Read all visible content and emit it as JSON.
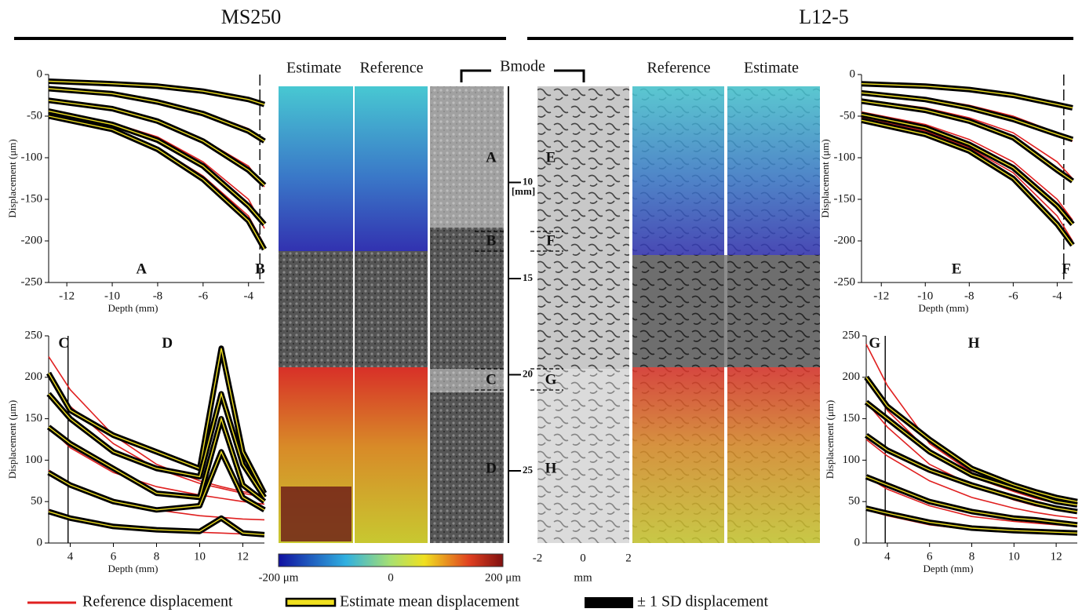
{
  "headers": {
    "left": "MS250",
    "right": "L12-5"
  },
  "image_labels": {
    "ms250_estimate": "Estimate",
    "ms250_reference": "Reference",
    "bmode": "Bmode",
    "l125_reference": "Reference",
    "l125_estimate": "Estimate"
  },
  "region_labels": [
    "A",
    "B",
    "C",
    "D",
    "E",
    "F",
    "G",
    "H"
  ],
  "depth_ticks": [
    10,
    15,
    20,
    25
  ],
  "depth_unit": "[mm]",
  "colorbar": {
    "labels": [
      "-200 μm",
      "0",
      "200 μm"
    ]
  },
  "lateral_axis": {
    "ticks": [
      -2,
      0,
      2
    ],
    "unit": "mm"
  },
  "legend": [
    "Reference displacement",
    "Estimate mean displacement",
    "± 1 SD displacement"
  ],
  "chart_data": [
    {
      "type": "line",
      "xlabel": "Depth (mm)",
      "ylabel": "Displacement (μm)",
      "xlim": [
        -12.8,
        -3.3
      ],
      "ylim": [
        -250,
        0
      ],
      "xticks": [
        -12,
        -10,
        -8,
        -6,
        -4
      ],
      "yticks": [
        -250,
        -200,
        -150,
        -100,
        -50,
        0
      ],
      "vline": -3.5,
      "annotations": [
        "A",
        "B"
      ],
      "x": [
        -12.8,
        -10,
        -8,
        -6,
        -4,
        -3.3
      ],
      "series": [
        {
          "color": "#e02020",
          "values": [
            -9,
            -12,
            -15,
            -20,
            -28,
            -35
          ]
        },
        {
          "color": "#e02020",
          "values": [
            -18,
            -24,
            -32,
            -45,
            -65,
            -80
          ]
        },
        {
          "color": "#e02020",
          "values": [
            -32,
            -42,
            -55,
            -78,
            -110,
            -135
          ]
        },
        {
          "color": "#e02020",
          "values": [
            -43,
            -58,
            -75,
            -105,
            -150,
            -185
          ]
        },
        {
          "color": "#e02020",
          "values": [
            -52,
            -68,
            -88,
            -122,
            -170,
            -205
          ]
        },
        {
          "color": "#f0e020",
          "values": [
            -8,
            -11,
            -14,
            -20,
            -30,
            -36
          ]
        },
        {
          "color": "#f0e020",
          "values": [
            -17,
            -23,
            -33,
            -47,
            -68,
            -80
          ]
        },
        {
          "color": "#f0e020",
          "values": [
            -31,
            -41,
            -56,
            -80,
            -115,
            -133
          ]
        },
        {
          "color": "#f0e020",
          "values": [
            -44,
            -60,
            -79,
            -110,
            -158,
            -180
          ]
        },
        {
          "color": "#f0e020",
          "values": [
            -50,
            -66,
            -90,
            -126,
            -176,
            -210
          ]
        }
      ]
    },
    {
      "type": "line",
      "xlabel": "Depth (mm)",
      "ylabel": "Displacement (μm)",
      "xlim": [
        3,
        13
      ],
      "ylim": [
        0,
        250
      ],
      "xticks": [
        4,
        6,
        8,
        10,
        12
      ],
      "yticks": [
        0,
        50,
        100,
        150,
        200,
        250
      ],
      "vline": 3.9,
      "annotations": [
        "C",
        "D"
      ],
      "x": [
        3,
        4,
        6,
        8,
        10,
        11,
        12,
        13
      ],
      "series": [
        {
          "color": "#e02020",
          "values": [
            225,
            185,
            130,
            95,
            75,
            68,
            62,
            58
          ]
        },
        {
          "color": "#e02020",
          "values": [
            200,
            165,
            120,
            90,
            72,
            66,
            60,
            55
          ]
        },
        {
          "color": "#e02020",
          "values": [
            140,
            115,
            85,
            68,
            58,
            54,
            50,
            47
          ]
        },
        {
          "color": "#e02020",
          "values": [
            88,
            72,
            52,
            40,
            33,
            31,
            29,
            28
          ]
        },
        {
          "color": "#e02020",
          "values": [
            40,
            32,
            22,
            16,
            13,
            12,
            11,
            10
          ]
        },
        {
          "color": "#f0e020",
          "values": [
            205,
            160,
            130,
            110,
            90,
            235,
            110,
            60
          ]
        },
        {
          "color": "#f0e020",
          "values": [
            180,
            150,
            110,
            90,
            80,
            180,
            95,
            55
          ]
        },
        {
          "color": "#f0e020",
          "values": [
            140,
            120,
            90,
            60,
            55,
            150,
            70,
            50
          ]
        },
        {
          "color": "#f0e020",
          "values": [
            85,
            70,
            50,
            40,
            45,
            110,
            55,
            40
          ]
        },
        {
          "color": "#f0e020",
          "values": [
            38,
            30,
            20,
            16,
            14,
            30,
            12,
            10
          ]
        }
      ]
    },
    {
      "type": "line",
      "xlabel": "Depth (mm)",
      "ylabel": "Displacement (μm)",
      "xlim": [
        -12.9,
        -3.3
      ],
      "ylim": [
        -250,
        0
      ],
      "xticks": [
        -12,
        -10,
        -8,
        -6,
        -4
      ],
      "yticks": [
        -250,
        -200,
        -150,
        -100,
        -50,
        0
      ],
      "vline": -3.7,
      "annotations": [
        "E",
        "F"
      ],
      "x": [
        -12.9,
        -10,
        -8,
        -6,
        -4,
        -3.3
      ],
      "series": [
        {
          "color": "#e02020",
          "values": [
            -10,
            -13,
            -17,
            -24,
            -35,
            -40
          ]
        },
        {
          "color": "#e02020",
          "values": [
            -20,
            -28,
            -37,
            -50,
            -70,
            -80
          ]
        },
        {
          "color": "#e02020",
          "values": [
            -30,
            -40,
            -52,
            -70,
            -105,
            -125
          ]
        },
        {
          "color": "#e02020",
          "values": [
            -45,
            -60,
            -78,
            -105,
            -150,
            -175
          ]
        },
        {
          "color": "#e02020",
          "values": [
            -52,
            -68,
            -88,
            -118,
            -170,
            -200
          ]
        },
        {
          "color": "#f0e020",
          "values": [
            -11,
            -14,
            -18,
            -25,
            -36,
            -40
          ]
        },
        {
          "color": "#f0e020",
          "values": [
            -22,
            -30,
            -40,
            -54,
            -72,
            -78
          ]
        },
        {
          "color": "#f0e020",
          "values": [
            -32,
            -43,
            -56,
            -76,
            -115,
            -128
          ]
        },
        {
          "color": "#f0e020",
          "values": [
            -48,
            -64,
            -84,
            -112,
            -158,
            -180
          ]
        },
        {
          "color": "#f0e020",
          "values": [
            -55,
            -72,
            -92,
            -125,
            -180,
            -205
          ]
        }
      ]
    },
    {
      "type": "line",
      "xlabel": "Depth (mm)",
      "ylabel": "Displacement (μm)",
      "xlim": [
        3,
        13
      ],
      "ylim": [
        0,
        250
      ],
      "xticks": [
        4,
        6,
        8,
        10,
        12
      ],
      "yticks": [
        0,
        50,
        100,
        150,
        200,
        250
      ],
      "vline": 3.9,
      "annotations": [
        "G",
        "H"
      ],
      "x": [
        3,
        4,
        6,
        8,
        10,
        11,
        12,
        13
      ],
      "series": [
        {
          "color": "#e02020",
          "values": [
            240,
            190,
            120,
            85,
            65,
            55,
            50,
            48
          ]
        },
        {
          "color": "#e02020",
          "values": [
            200,
            160,
            110,
            80,
            62,
            54,
            48,
            45
          ]
        },
        {
          "color": "#e02020",
          "values": [
            170,
            140,
            95,
            70,
            52,
            45,
            40,
            38
          ]
        },
        {
          "color": "#e02020",
          "values": [
            125,
            105,
            75,
            55,
            42,
            37,
            33,
            30
          ]
        },
        {
          "color": "#e02020",
          "values": [
            80,
            65,
            45,
            32,
            26,
            24,
            22,
            20
          ]
        },
        {
          "color": "#e02020",
          "values": [
            40,
            33,
            22,
            16,
            13,
            12,
            11,
            10
          ]
        },
        {
          "color": "#f0e020",
          "values": [
            200,
            165,
            125,
            90,
            70,
            62,
            55,
            50
          ]
        },
        {
          "color": "#f0e020",
          "values": [
            170,
            150,
            110,
            82,
            66,
            58,
            50,
            46
          ]
        },
        {
          "color": "#f0e020",
          "values": [
            130,
            112,
            88,
            70,
            55,
            48,
            42,
            38
          ]
        },
        {
          "color": "#f0e020",
          "values": [
            80,
            70,
            50,
            38,
            30,
            28,
            25,
            22
          ]
        },
        {
          "color": "#f0e020",
          "values": [
            42,
            36,
            25,
            18,
            15,
            14,
            13,
            12
          ]
        }
      ]
    }
  ]
}
